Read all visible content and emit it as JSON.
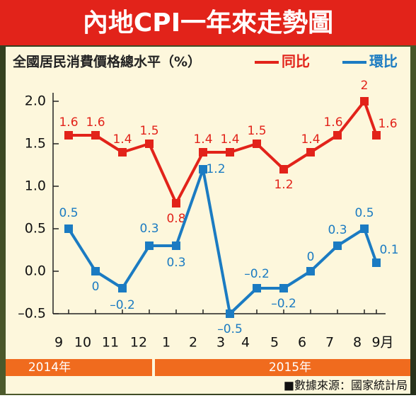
{
  "chart_data": {
    "type": "line",
    "title": "內地CPI一年來走勢圖",
    "subtitle": "全國居民消費價格總水平（%）",
    "categories": [
      "9",
      "10",
      "11",
      "12",
      "1",
      "2",
      "3",
      "4",
      "5",
      "6",
      "7",
      "8",
      "9月"
    ],
    "x_groups": [
      "2014年",
      "2015年"
    ],
    "series": [
      {
        "name": "同比",
        "color": "#e2231a",
        "values": [
          1.6,
          1.6,
          1.4,
          1.5,
          0.8,
          1.4,
          1.4,
          1.5,
          1.2,
          1.4,
          1.6,
          2,
          1.6
        ]
      },
      {
        "name": "環比",
        "color": "#1b7bc2",
        "values": [
          0.5,
          0,
          -0.2,
          0.3,
          0.3,
          1.2,
          -0.5,
          -0.2,
          -0.2,
          0,
          0.3,
          0.5,
          0.1
        ],
        "value_labels": [
          "0.5",
          "0",
          "–0.2",
          "0.3",
          "0.3",
          "1.2",
          "–0.5",
          "–0.2",
          "–0.2",
          "0",
          "0.3",
          "0.5",
          "0.1"
        ]
      }
    ],
    "ylim": [
      -0.5,
      2.1
    ],
    "yticks": [
      {
        "value": -0.5,
        "label": "–0.5"
      },
      {
        "value": 0,
        "label": "0.0"
      },
      0.5,
      {
        "value": 1,
        "label": "1.0"
      },
      1.5,
      {
        "value": 2,
        "label": "2.0"
      }
    ],
    "grid": false,
    "source": "■數據來源：國家統計局"
  }
}
